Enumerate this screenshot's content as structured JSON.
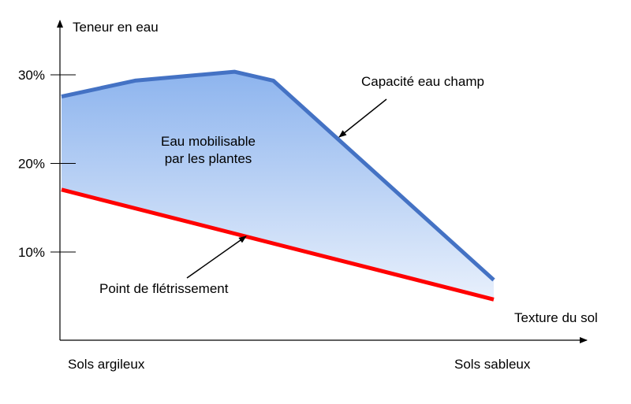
{
  "chart_data": {
    "type": "area",
    "ylabel": "Teneur en eau",
    "xlabel": "Texture du sol",
    "yticks": [
      {
        "value": 30,
        "label": "30%"
      },
      {
        "value": 20,
        "label": "20%"
      },
      {
        "value": 10,
        "label": "10%"
      }
    ],
    "xcategories": [
      {
        "x": 0,
        "label": "Sols argileux"
      },
      {
        "x": 1,
        "label": "Sols sableux"
      }
    ],
    "ylim": [
      0,
      36
    ],
    "xlim": [
      0,
      1
    ],
    "grid": false,
    "series": [
      {
        "name": "Capacité eau champ",
        "color": "#4472C4",
        "points": [
          [
            0,
            27.5
          ],
          [
            0.17,
            29.3
          ],
          [
            0.4,
            30.3
          ],
          [
            0.49,
            29.3
          ],
          [
            1,
            6.8
          ]
        ]
      },
      {
        "name": "Point de flétrissement",
        "color": "#FF0000",
        "points": [
          [
            0,
            17.0
          ],
          [
            1,
            4.6
          ]
        ]
      }
    ],
    "area": {
      "label_line1": "Eau mobilisable",
      "label_line2": "par les plantes",
      "color_top": "#8DB4EE",
      "color_bottom": "#E8F0FC"
    },
    "annotations": [
      {
        "text": "Capacité eau champ",
        "points_to": "Capacité eau champ"
      },
      {
        "text": "Point de flétrissement",
        "points_to": "Point de flétrissement"
      }
    ]
  }
}
